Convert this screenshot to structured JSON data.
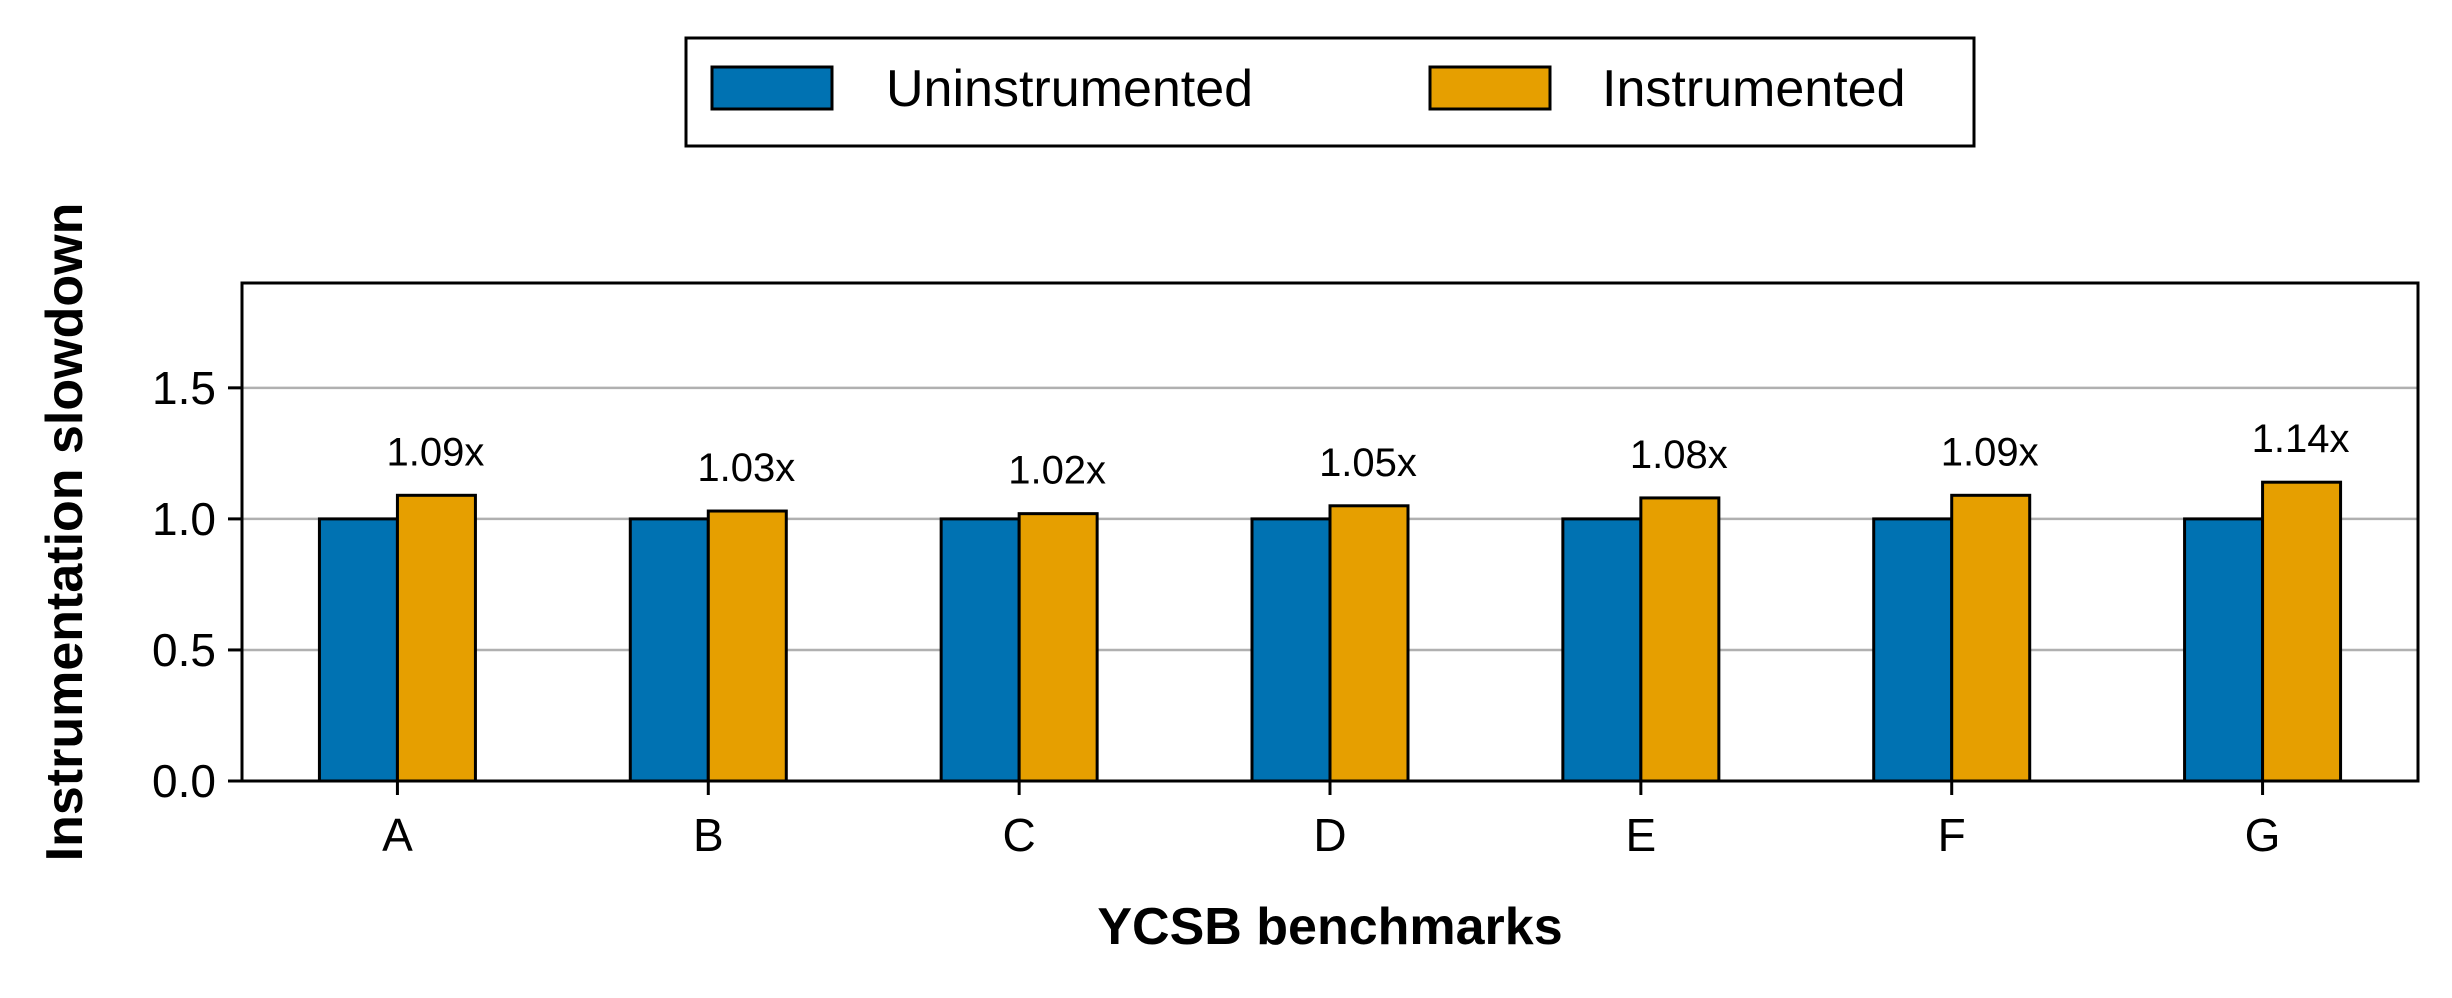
{
  "chart_data": {
    "type": "bar",
    "categories": [
      "A",
      "B",
      "C",
      "D",
      "E",
      "F",
      "G"
    ],
    "series": [
      {
        "name": "Uninstrumented",
        "values": [
          1.0,
          1.0,
          1.0,
          1.0,
          1.0,
          1.0,
          1.0
        ],
        "color": "#0072b2"
      },
      {
        "name": "Instrumented",
        "values": [
          1.09,
          1.03,
          1.02,
          1.05,
          1.08,
          1.09,
          1.14
        ],
        "color": "#e69f00"
      }
    ],
    "data_labels": [
      "1.09x",
      "1.03x",
      "1.02x",
      "1.05x",
      "1.08x",
      "1.09x",
      "1.14x"
    ],
    "xlabel": "YCSB benchmarks",
    "ylabel": "Instrumentation slowdown",
    "ylim": [
      0,
      1.9
    ],
    "yticks": [
      0.0,
      0.5,
      1.0,
      1.5
    ],
    "ytick_labels": [
      "0.0",
      "0.5",
      "1.0",
      "1.5"
    ],
    "grid": "horizontal",
    "legend_position": "top-center, outside plot"
  }
}
